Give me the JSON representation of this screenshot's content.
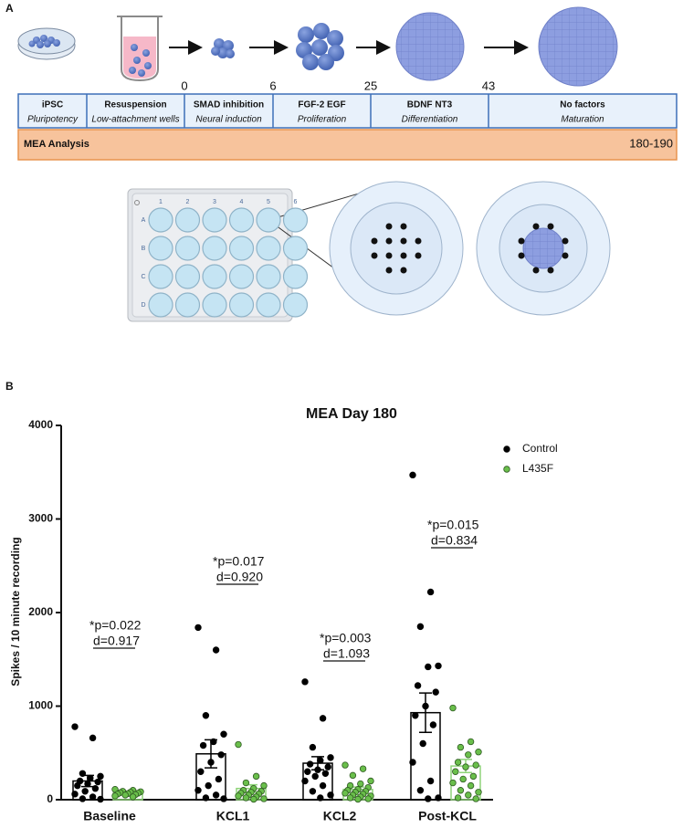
{
  "panel_a": {
    "label": "A",
    "days": [
      "0",
      "6",
      "25",
      "43"
    ],
    "stages": [
      {
        "title": "iPSC",
        "subtitle": "Pluripotency"
      },
      {
        "title": "Resuspension",
        "subtitle": "Low-attachment wells"
      },
      {
        "title": "SMAD inhibition",
        "subtitle": "Neural induction"
      },
      {
        "title": "FGF-2 EGF",
        "subtitle": "Proliferation"
      },
      {
        "title": "BDNF NT3",
        "subtitle": "Differentiation"
      },
      {
        "title": "No factors",
        "subtitle": "Maturation"
      }
    ],
    "analysis": {
      "label": "MEA Analysis",
      "days": "180-190"
    },
    "plate": {
      "columns": [
        "1",
        "2",
        "3",
        "4",
        "5",
        "6"
      ],
      "rows": [
        "A",
        "B",
        "C",
        "D"
      ]
    }
  },
  "chart_data": {
    "type": "bar",
    "panel_label": "B",
    "title": "MEA Day 180",
    "y_label": "Spikes / 10 minute recording",
    "categories": [
      "Baseline",
      "KCL1",
      "KCL2",
      "Post-KCL"
    ],
    "ylim": [
      0,
      4000
    ],
    "yticks": [
      0,
      1000,
      2000,
      3000,
      4000
    ],
    "legend": "top-right",
    "series": [
      {
        "name": "Control",
        "color": "#000000",
        "bar_color": "#000000",
        "values": [
          200,
          490,
          390,
          930
        ],
        "errors": [
          60,
          150,
          70,
          210
        ],
        "points": [
          [
            780,
            660,
            280,
            250,
            230,
            200,
            190,
            170,
            150,
            120,
            90,
            60,
            30,
            10,
            5
          ],
          [
            1840,
            1600,
            900,
            700,
            620,
            580,
            480,
            400,
            300,
            220,
            150,
            100,
            50,
            20,
            10
          ],
          [
            1260,
            870,
            560,
            450,
            420,
            380,
            350,
            320,
            300,
            280,
            250,
            200,
            150,
            90,
            50,
            20
          ],
          [
            3470,
            2220,
            1850,
            1430,
            1420,
            1220,
            1150,
            1000,
            900,
            800,
            600,
            400,
            200,
            100,
            20,
            10
          ]
        ]
      },
      {
        "name": "L435F",
        "color": "#6abf4b",
        "bar_color": "#8fd47a",
        "values": [
          70,
          120,
          110,
          360
        ],
        "errors": [
          10,
          40,
          25,
          70
        ],
        "points": [
          [
            110,
            100,
            90,
            85,
            80,
            75,
            70,
            65,
            60,
            55,
            50,
            40,
            30
          ],
          [
            590,
            250,
            180,
            150,
            120,
            100,
            90,
            80,
            70,
            60,
            50,
            40,
            30,
            20,
            10,
            5
          ],
          [
            370,
            330,
            260,
            200,
            170,
            150,
            130,
            110,
            100,
            90,
            80,
            70,
            60,
            50,
            40,
            30,
            20,
            10,
            5
          ],
          [
            980,
            620,
            560,
            510,
            480,
            400,
            370,
            350,
            300,
            250,
            220,
            180,
            150,
            100,
            80,
            50,
            20,
            10
          ]
        ]
      }
    ],
    "annotations": [
      {
        "p": "*p=0.022",
        "d": "d=0.917"
      },
      {
        "p": "*p=0.017",
        "d": "d=0.920"
      },
      {
        "p": "*p=0.003",
        "d": "d=1.093"
      },
      {
        "p": "*p=0.015",
        "d": "d=0.834"
      }
    ]
  }
}
